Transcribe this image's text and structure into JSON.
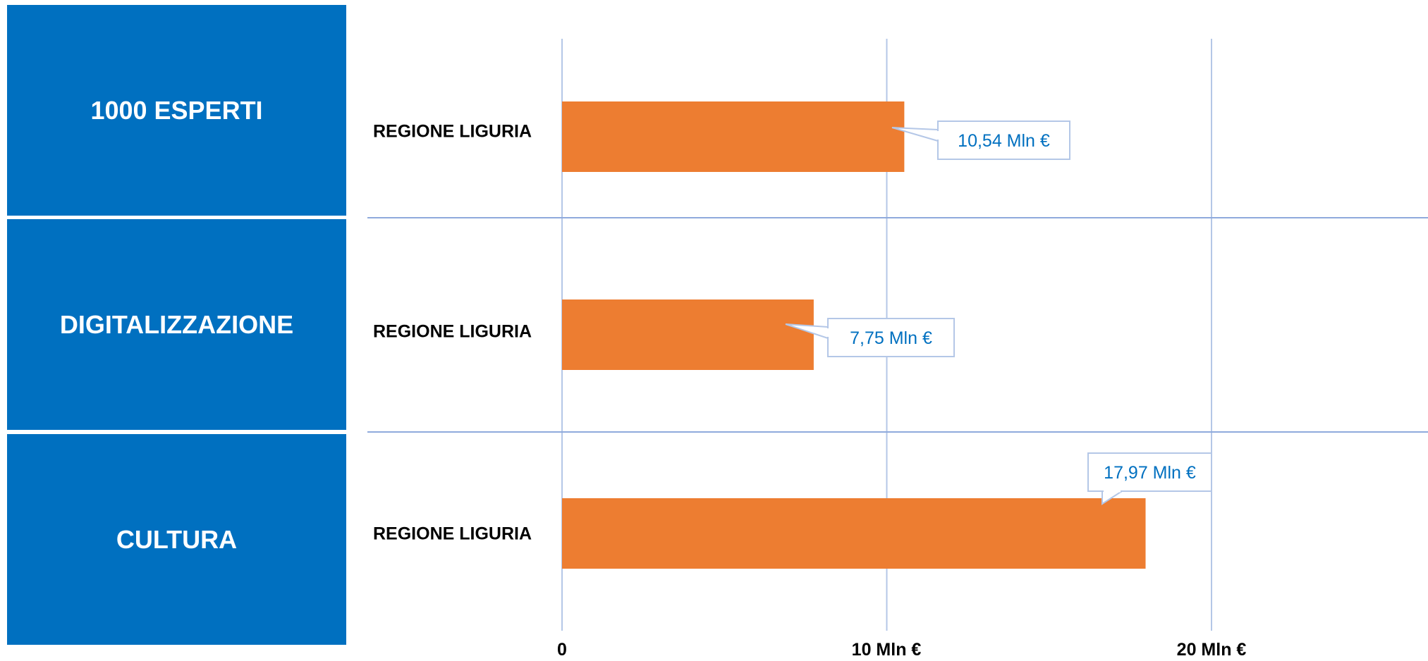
{
  "panels": [
    {
      "label": "1000 ESPERTI"
    },
    {
      "label": "DIGITALIZZAZIONE"
    },
    {
      "label": "CULTURA"
    }
  ],
  "colors": {
    "panel": "#0070c0",
    "bar": "#ed7d31",
    "grid": "#b4c7e7",
    "separator": "#8faadc",
    "label_text": "#0070c0"
  },
  "chart_data": {
    "type": "bar",
    "orientation": "horizontal",
    "categories": [
      "REGIONE LIGURIA",
      "REGIONE LIGURIA",
      "REGIONE LIGURIA"
    ],
    "values": [
      10.54,
      7.75,
      17.97
    ],
    "value_labels": [
      "10,54 Mln €",
      "7,75 Mln €",
      "17,97 Mln €"
    ],
    "xlim": [
      0,
      20
    ],
    "xticks": [
      0,
      10,
      20
    ],
    "xtick_labels": [
      "0",
      "10 Mln €",
      "20 Mln €"
    ],
    "grid": true
  }
}
